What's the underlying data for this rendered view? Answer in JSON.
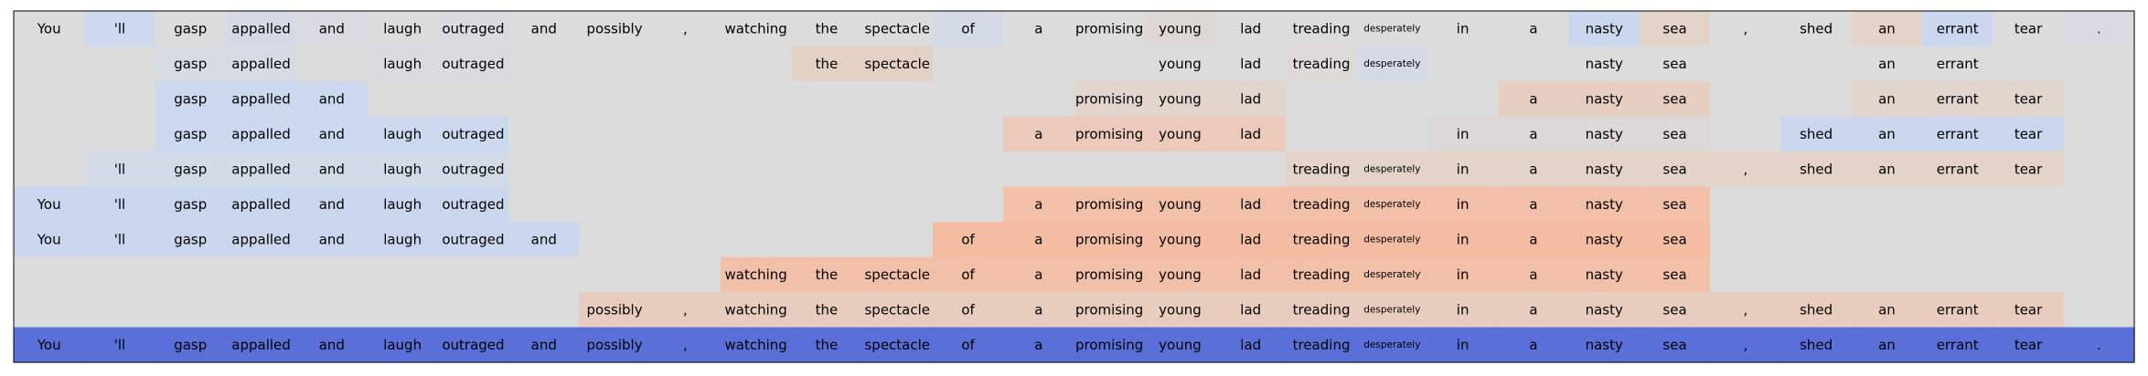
{
  "chart_data": {
    "type": "heatmap",
    "title": "",
    "xlabel": "",
    "ylabel": "",
    "tokens": [
      "You",
      "'ll",
      "gasp",
      "appalled",
      "and",
      "laugh",
      "outraged",
      "and",
      "possibly",
      ",",
      "watching",
      "the",
      "spectacle",
      "of",
      "a",
      "promising",
      "young",
      "lad",
      "treading",
      "desperately",
      "in",
      "a",
      "nasty",
      "sea",
      ",",
      "shed",
      "an",
      "errant",
      "tear",
      "."
    ],
    "small_tokens": [
      19
    ],
    "background": "#dcdcdc",
    "rows": [
      {
        "visible": [
          1,
          1,
          1,
          1,
          1,
          1,
          1,
          1,
          1,
          1,
          1,
          1,
          1,
          1,
          1,
          1,
          1,
          1,
          1,
          1,
          1,
          1,
          1,
          1,
          1,
          1,
          1,
          1,
          1,
          1
        ],
        "colors": [
          "#dcdcdc",
          "#cdd9ee",
          "#dcdcdc",
          "#d4dbe6",
          "#d8dbe2",
          "#dcdcdc",
          "#d8dbe2",
          "#dcdcdc",
          "#dcdcdc",
          "#dcdcdc",
          "#dcdcdc",
          "#dcdcdc",
          "#dcdcdc",
          "#d5dbe6",
          "#dcdcdc",
          "#dcdcdc",
          "#ddd8d4",
          "#dcdcdc",
          "#dcdcdc",
          "#dcdcdc",
          "#dcdcdc",
          "#dcdcdc",
          "#c9d6ee",
          "#e3d3c9",
          "#dcdcdc",
          "#dcdcdc",
          "#e3d3c9",
          "#cbd7ee",
          "#dcdcdc",
          "#d8dbe2"
        ]
      },
      {
        "visible": [
          0,
          0,
          1,
          1,
          0,
          1,
          1,
          0,
          0,
          0,
          0,
          1,
          1,
          0,
          0,
          0,
          1,
          1,
          1,
          1,
          0,
          0,
          1,
          1,
          0,
          0,
          1,
          1,
          0,
          0
        ],
        "colors": [
          "#dcdcdc",
          "#dcdcdc",
          "#d6dbe4",
          "#d6dbe4",
          "#dcdcdc",
          "#d9dbe0",
          "#d9dbe0",
          "#dcdcdc",
          "#dcdcdc",
          "#dcdcdc",
          "#dcdcdc",
          "#e4d1c6",
          "#e4d1c6",
          "#dcdcdc",
          "#dcdcdc",
          "#dcdcdc",
          "#dcdcdc",
          "#dcdcdc",
          "#dddad7",
          "#d5dbe6",
          "#dcdcdc",
          "#dcdcdc",
          "#dcdcdc",
          "#dcdcdc",
          "#dcdcdc",
          "#dcdcdc",
          "#dcdcdc",
          "#dcdcdc",
          "#dcdcdc",
          "#dcdcdc"
        ]
      },
      {
        "visible": [
          0,
          0,
          1,
          1,
          1,
          0,
          0,
          0,
          0,
          0,
          0,
          0,
          0,
          0,
          0,
          1,
          1,
          1,
          0,
          0,
          0,
          1,
          1,
          1,
          0,
          0,
          1,
          1,
          1,
          0
        ],
        "colors": [
          "#dcdcdc",
          "#dcdcdc",
          "#ccd8ee",
          "#ccd8ee",
          "#ccd8ee",
          "#dcdcdc",
          "#dcdcdc",
          "#dcdcdc",
          "#dcdcdc",
          "#dcdcdc",
          "#dcdcdc",
          "#dcdcdc",
          "#dcdcdc",
          "#dcdcdc",
          "#dcdcdc",
          "#e1d5cd",
          "#e1d5cd",
          "#e1d5cd",
          "#dcdcdc",
          "#dcdcdc",
          "#dcdcdc",
          "#e6cfc1",
          "#e6cfc1",
          "#e6cfc1",
          "#dcdcdc",
          "#dcdcdc",
          "#e1d5cd",
          "#e1d5cd",
          "#e1d5cd",
          "#dcdcdc"
        ]
      },
      {
        "visible": [
          0,
          0,
          1,
          1,
          1,
          1,
          1,
          0,
          0,
          0,
          0,
          0,
          0,
          0,
          1,
          1,
          1,
          1,
          0,
          0,
          1,
          1,
          1,
          1,
          0,
          1,
          1,
          1,
          1,
          0
        ],
        "colors": [
          "#dcdcdc",
          "#dcdcdc",
          "#ccd8ee",
          "#ccd8ee",
          "#ccd8ee",
          "#ccd8ee",
          "#ccd8ee",
          "#dcdcdc",
          "#dcdcdc",
          "#dcdcdc",
          "#dcdcdc",
          "#dcdcdc",
          "#dcdcdc",
          "#dcdcdc",
          "#eccabb",
          "#eccabb",
          "#eccabb",
          "#eccabb",
          "#dcdcdc",
          "#dcdcdc",
          "#dad9d8",
          "#dad9d8",
          "#dad9d8",
          "#dad9d8",
          "#dcdcdc",
          "#c9d6ee",
          "#c9d6ee",
          "#c9d6ee",
          "#c9d6ee",
          "#dcdcdc"
        ]
      },
      {
        "visible": [
          0,
          1,
          1,
          1,
          1,
          1,
          1,
          0,
          0,
          0,
          0,
          0,
          0,
          0,
          0,
          0,
          0,
          0,
          1,
          1,
          1,
          1,
          1,
          1,
          1,
          1,
          1,
          1,
          1,
          0
        ],
        "colors": [
          "#dcdcdc",
          "#d3dbe8",
          "#d3dbe8",
          "#d3dbe8",
          "#d3dbe8",
          "#d3dbe8",
          "#d3dbe8",
          "#dcdcdc",
          "#dcdcdc",
          "#dcdcdc",
          "#dcdcdc",
          "#dcdcdc",
          "#dcdcdc",
          "#dcdcdc",
          "#dcdcdc",
          "#dcdcdc",
          "#dcdcdc",
          "#dcdcdc",
          "#e3d3c9",
          "#e3d3c9",
          "#e3d3c9",
          "#e3d3c9",
          "#e3d3c9",
          "#e3d3c9",
          "#e3d3c9",
          "#e3d3c9",
          "#e3d3c9",
          "#e3d3c9",
          "#e3d3c9",
          "#dcdcdc"
        ]
      },
      {
        "visible": [
          1,
          1,
          1,
          1,
          1,
          1,
          1,
          0,
          0,
          0,
          0,
          0,
          0,
          0,
          1,
          1,
          1,
          1,
          1,
          1,
          1,
          1,
          1,
          1,
          0,
          0,
          0,
          0,
          0,
          0
        ],
        "colors": [
          "#c9d6ee",
          "#c9d6ee",
          "#c9d6ee",
          "#c9d6ee",
          "#c9d6ee",
          "#c9d6ee",
          "#c9d6ee",
          "#dcdcdc",
          "#dcdcdc",
          "#dcdcdc",
          "#dcdcdc",
          "#dcdcdc",
          "#dcdcdc",
          "#dcdcdc",
          "#f2c0a8",
          "#f2c0a8",
          "#f2c0a8",
          "#f2c0a8",
          "#f2c0a8",
          "#f2c0a8",
          "#f2c0a8",
          "#f2c0a8",
          "#f2c0a8",
          "#f2c0a8",
          "#dcdcdc",
          "#dcdcdc",
          "#dcdcdc",
          "#dcdcdc",
          "#dcdcdc",
          "#dcdcdc"
        ]
      },
      {
        "visible": [
          1,
          1,
          1,
          1,
          1,
          1,
          1,
          1,
          0,
          0,
          0,
          0,
          0,
          1,
          1,
          1,
          1,
          1,
          1,
          1,
          1,
          1,
          1,
          1,
          0,
          0,
          0,
          0,
          0,
          0
        ],
        "colors": [
          "#c9d6ee",
          "#c9d6ee",
          "#c9d6ee",
          "#c9d6ee",
          "#c9d6ee",
          "#c9d6ee",
          "#c9d6ee",
          "#c9d6ee",
          "#dcdcdc",
          "#dcdcdc",
          "#dcdcdc",
          "#dcdcdc",
          "#dcdcdc",
          "#f4bca3",
          "#f4bca3",
          "#f4bca3",
          "#f4bca3",
          "#f4bca3",
          "#f4bca3",
          "#f4bca3",
          "#f4bca3",
          "#f4bca3",
          "#f4bca3",
          "#f4bca3",
          "#dcdcdc",
          "#dcdcdc",
          "#dcdcdc",
          "#dcdcdc",
          "#dcdcdc",
          "#dcdcdc"
        ]
      },
      {
        "visible": [
          0,
          0,
          0,
          0,
          0,
          0,
          0,
          0,
          0,
          0,
          1,
          1,
          1,
          1,
          1,
          1,
          1,
          1,
          1,
          1,
          1,
          1,
          1,
          1,
          0,
          0,
          0,
          0,
          0,
          0
        ],
        "colors": [
          "#dcdcdc",
          "#dcdcdc",
          "#dcdcdc",
          "#dcdcdc",
          "#dcdcdc",
          "#dcdcdc",
          "#dcdcdc",
          "#dcdcdc",
          "#dcdcdc",
          "#dcdcdc",
          "#f2c0a8",
          "#f2c0a8",
          "#f2c0a8",
          "#f2c0a8",
          "#f2c0a8",
          "#f2c0a8",
          "#f2c0a8",
          "#f2c0a8",
          "#f2c0a8",
          "#f2c0a8",
          "#f2c0a8",
          "#f2c0a8",
          "#f2c0a8",
          "#f2c0a8",
          "#dcdcdc",
          "#dcdcdc",
          "#dcdcdc",
          "#dcdcdc",
          "#dcdcdc",
          "#dcdcdc"
        ]
      },
      {
        "visible": [
          0,
          0,
          0,
          0,
          0,
          0,
          0,
          0,
          1,
          1,
          1,
          1,
          1,
          1,
          1,
          1,
          1,
          1,
          1,
          1,
          1,
          1,
          1,
          1,
          1,
          1,
          1,
          1,
          1,
          0
        ],
        "colors": [
          "#dcdcdc",
          "#dcdcdc",
          "#dcdcdc",
          "#dcdcdc",
          "#dcdcdc",
          "#dcdcdc",
          "#dcdcdc",
          "#dcdcdc",
          "#e8cdbf",
          "#e8cdbf",
          "#e8cdbf",
          "#e8cdbf",
          "#e8cdbf",
          "#e8cdbf",
          "#e8cdbf",
          "#e8cdbf",
          "#e8cdbf",
          "#e8cdbf",
          "#e8cdbf",
          "#e8cdbf",
          "#e8cdbf",
          "#e8cdbf",
          "#e8cdbf",
          "#e8cdbf",
          "#e8cdbf",
          "#e8cdbf",
          "#e8cdbf",
          "#e8cdbf",
          "#e8cdbf",
          "#dcdcdc"
        ]
      },
      {
        "visible": [
          1,
          1,
          1,
          1,
          1,
          1,
          1,
          1,
          1,
          1,
          1,
          1,
          1,
          1,
          1,
          1,
          1,
          1,
          1,
          1,
          1,
          1,
          1,
          1,
          1,
          1,
          1,
          1,
          1,
          1
        ],
        "colors": [
          "#5a6fd8",
          "#5a6fd8",
          "#5a6fd8",
          "#5a6fd8",
          "#5a6fd8",
          "#5a6fd8",
          "#5a6fd8",
          "#5a6fd8",
          "#5a6fd8",
          "#5a6fd8",
          "#5a6fd8",
          "#5a6fd8",
          "#5a6fd8",
          "#5a6fd8",
          "#5a6fd8",
          "#5a6fd8",
          "#5a6fd8",
          "#5a6fd8",
          "#5a6fd8",
          "#5a6fd8",
          "#5a6fd8",
          "#5a6fd8",
          "#5a6fd8",
          "#5a6fd8",
          "#5a6fd8",
          "#5a6fd8",
          "#5a6fd8",
          "#5a6fd8",
          "#5a6fd8",
          "#5a6fd8"
        ]
      }
    ]
  }
}
